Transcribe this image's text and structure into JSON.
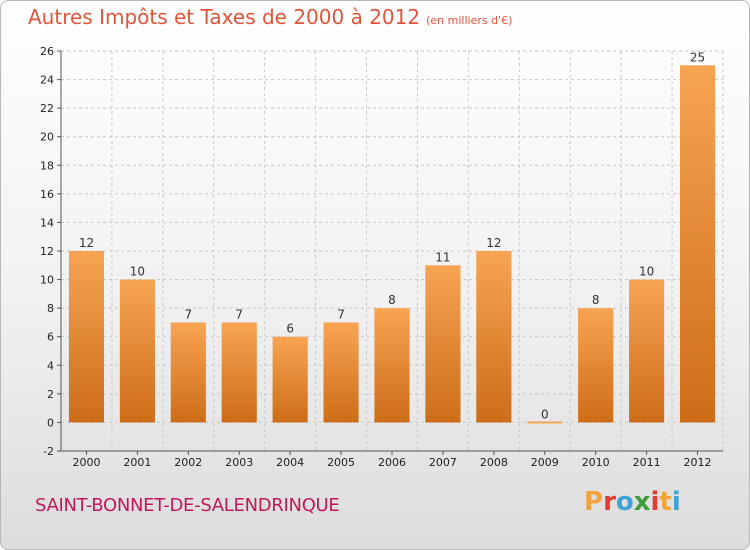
{
  "header": {
    "title": "Autres Impôts et Taxes de 2000 à 2012",
    "unit": "(en milliers d'€)"
  },
  "footer": {
    "commune": "SAINT-BONNET-DE-SALENDRINQUE",
    "logo_letters": [
      "P",
      "r",
      "o",
      "x",
      "i",
      "t",
      "i"
    ],
    "logo_colors": [
      "#f2a33a",
      "#e23c2c",
      "#3ba3d8",
      "#3b9d3b",
      "#e23c2c",
      "#f2a33a",
      "#3ba3d8"
    ]
  },
  "colors": {
    "bar_light": "#f7a453",
    "bar_dark": "#cd6d18",
    "grid": "#c8c8c8",
    "title": "#e0543a",
    "commune": "#c2185b"
  },
  "chart_data": {
    "type": "bar",
    "title": "Autres Impôts et Taxes de 2000 à 2012",
    "categories": [
      "2000",
      "2001",
      "2002",
      "2003",
      "2004",
      "2005",
      "2006",
      "2007",
      "2008",
      "2009",
      "2010",
      "2011",
      "2012"
    ],
    "values": [
      12,
      10,
      7,
      7,
      6,
      7,
      8,
      11,
      12,
      0,
      8,
      10,
      25
    ],
    "labels": [
      "12",
      "10",
      "7",
      "7",
      "6",
      "7",
      "8",
      "11",
      "12",
      "0",
      "8",
      "10",
      "25"
    ],
    "ylim": [
      -2,
      26
    ],
    "yticks": [
      -2,
      0,
      2,
      4,
      6,
      8,
      10,
      12,
      14,
      16,
      18,
      20,
      22,
      24,
      26
    ],
    "grid": true,
    "legend": "none"
  }
}
